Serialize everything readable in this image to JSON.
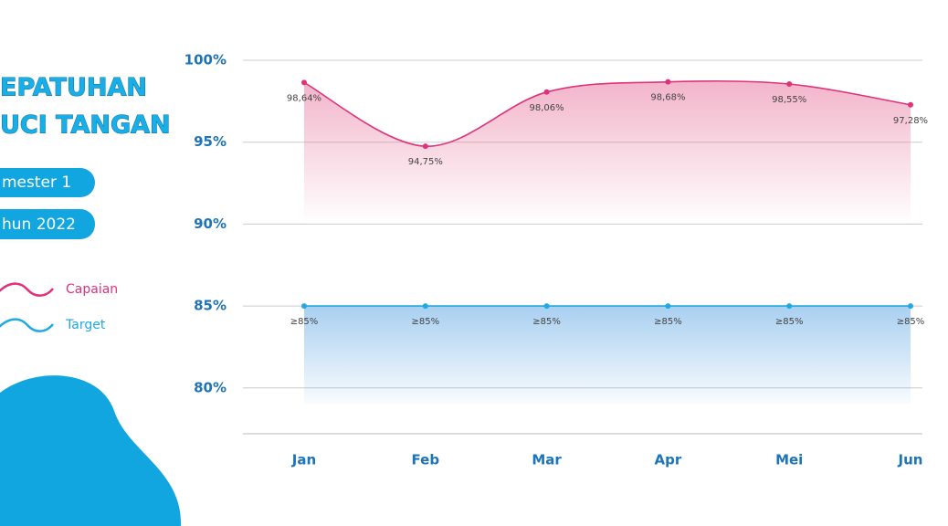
{
  "header": {
    "title": [
      "EPATUHAN",
      "UCI TANGAN"
    ],
    "tags": [
      "mester 1",
      "hun 2022"
    ]
  },
  "chart_data": {
    "type": "line",
    "categories": [
      "Jan",
      "Feb",
      "Mar",
      "Apr",
      "Mei",
      "Jun"
    ],
    "series": [
      {
        "name": "Capaian",
        "color": "#e0317a",
        "values": [
          98.64,
          94.75,
          98.06,
          98.68,
          98.55,
          97.28
        ],
        "value_labels": [
          "98,64%",
          "94,75%",
          "98,06%",
          "98,68%",
          "98,55%",
          "97,28%"
        ]
      },
      {
        "name": "Target",
        "color": "#21a9e1",
        "values": [
          85,
          85,
          85,
          85,
          85,
          85
        ],
        "value_labels": [
          "≥85%",
          "≥85%",
          "≥85%",
          "≥85%",
          "≥85%",
          "≥85%"
        ]
      }
    ],
    "ylim": [
      77.2,
      100
    ],
    "yticks": [
      {
        "value": 80,
        "label": "80%"
      },
      {
        "value": 85,
        "label": "85%"
      },
      {
        "value": 90,
        "label": "90%"
      },
      {
        "value": 95,
        "label": "95%"
      },
      {
        "value": 100,
        "label": "100%"
      }
    ],
    "grid": true
  }
}
